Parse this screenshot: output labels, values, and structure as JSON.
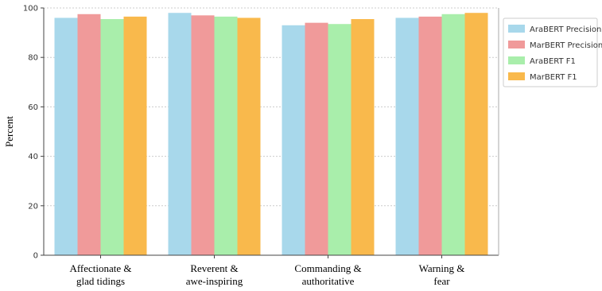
{
  "chart_data": {
    "type": "bar",
    "title": "",
    "xlabel": "",
    "ylabel": "Percent",
    "ylim": [
      0,
      100
    ],
    "yticks": [
      0,
      20,
      40,
      60,
      80,
      100
    ],
    "grid": "horizontal dotted",
    "legend_position": "right",
    "categories": [
      [
        "Affectionate &",
        "glad tidings"
      ],
      [
        "Reverent &",
        "awe-inspiring"
      ],
      [
        "Commanding &",
        "authoritative"
      ],
      [
        "Warning &",
        "fear"
      ]
    ],
    "series": [
      {
        "name": "AraBERT Precision",
        "color": "#a8d8eb",
        "values": [
          96,
          98,
          93,
          96
        ]
      },
      {
        "name": "MarBERT Precision",
        "color": "#f09a9a",
        "values": [
          97.5,
          97,
          94,
          96.5
        ]
      },
      {
        "name": "AraBERT F1",
        "color": "#a9eeab",
        "values": [
          95.5,
          96.5,
          93.5,
          97.5
        ]
      },
      {
        "name": "MarBERT F1",
        "color": "#f9b94c",
        "values": [
          96.5,
          96,
          95.5,
          98
        ]
      }
    ]
  }
}
